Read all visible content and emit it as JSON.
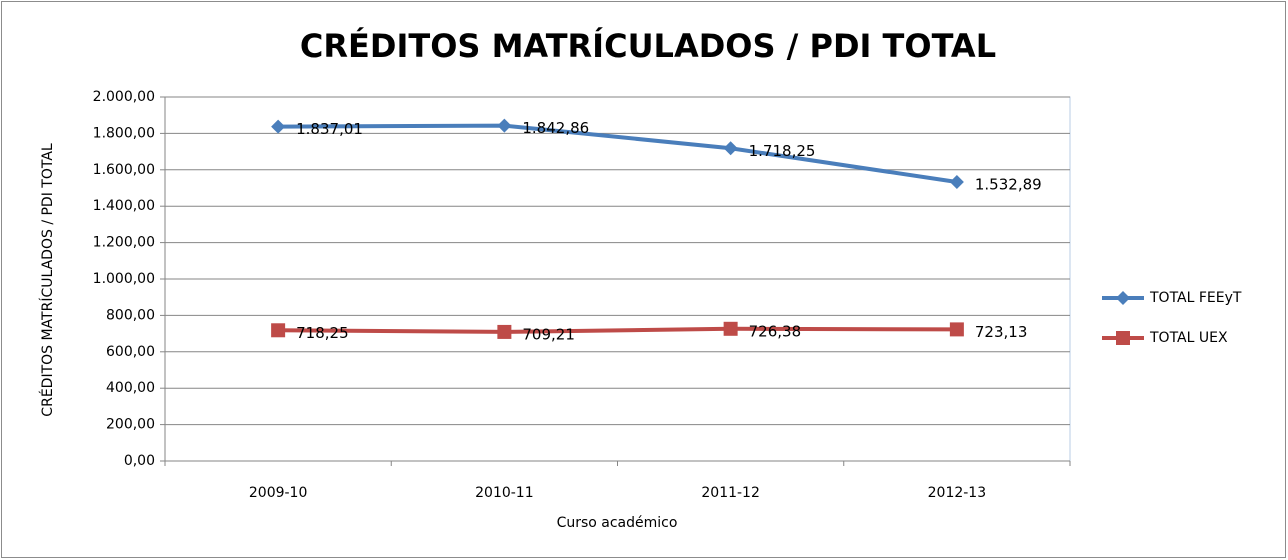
{
  "chart_data": {
    "type": "line",
    "title": "CRÉDITOS MATRÍCULADOS / PDI TOTAL",
    "x_label": "Curso académico",
    "y_label": "CRÉDITOS MATRÍCULADOS  / PDI TOTAL",
    "categories": [
      "2009-10",
      "2010-11",
      "2011-12",
      "2012-13"
    ],
    "series": [
      {
        "name": "TOTAL FEEyT",
        "color": "#4a7ebb",
        "marker": "diamond",
        "values": [
          1837.01,
          1842.86,
          1718.25,
          1532.89
        ],
        "value_labels": [
          "1.837,01",
          "1.842,86",
          "1.718,25",
          "1.532,89"
        ]
      },
      {
        "name": "TOTAL UEX",
        "color": "#be4b48",
        "marker": "square",
        "values": [
          718.25,
          709.21,
          726.38,
          723.13
        ],
        "value_labels": [
          "718,25",
          "709,21",
          "726,38",
          "723,13"
        ]
      }
    ],
    "ylim": [
      0,
      2000
    ],
    "yticks": [
      {
        "value": 0,
        "label": "0,00"
      },
      {
        "value": 200,
        "label": "200,00"
      },
      {
        "value": 400,
        "label": "400,00"
      },
      {
        "value": 600,
        "label": "600,00"
      },
      {
        "value": 800,
        "label": "800,00"
      },
      {
        "value": 1000,
        "label": "1.000,00"
      },
      {
        "value": 1200,
        "label": "1.200,00"
      },
      {
        "value": 1400,
        "label": "1.400,00"
      },
      {
        "value": 1600,
        "label": "1.600,00"
      },
      {
        "value": 1800,
        "label": "1.800,00"
      },
      {
        "value": 2000,
        "label": "2.000,00"
      }
    ],
    "grid": true,
    "legend": "right"
  }
}
